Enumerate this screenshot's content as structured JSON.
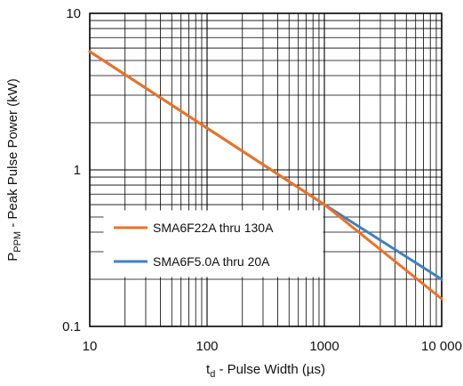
{
  "chart_data": {
    "type": "line",
    "xscale": "log",
    "yscale": "log",
    "xlim": [
      10,
      10000
    ],
    "ylim": [
      0.1,
      10
    ],
    "grid": true,
    "legend": "center-left",
    "x_ticks": [
      "10",
      "100",
      "1000",
      "10 000"
    ],
    "y_ticks": [
      "0.1",
      "1",
      "10"
    ],
    "xlabel": {
      "main": "t",
      "sub": "d",
      "rest": " - Pulse Width (µs)"
    },
    "ylabel": {
      "main": "P",
      "sub": "PPM",
      "rest": " - Peak Pulse Power (kW)"
    },
    "series": [
      {
        "name": "SMA6F22A thru 130A",
        "color": "#F07022",
        "x": [
          10,
          1000,
          10000
        ],
        "y": [
          5.7,
          0.6,
          0.15
        ]
      },
      {
        "name": "SMA6F5.0A thru 20A",
        "color": "#3D82C4",
        "x": [
          10,
          1000,
          10000
        ],
        "y": [
          5.7,
          0.6,
          0.2
        ]
      }
    ]
  }
}
